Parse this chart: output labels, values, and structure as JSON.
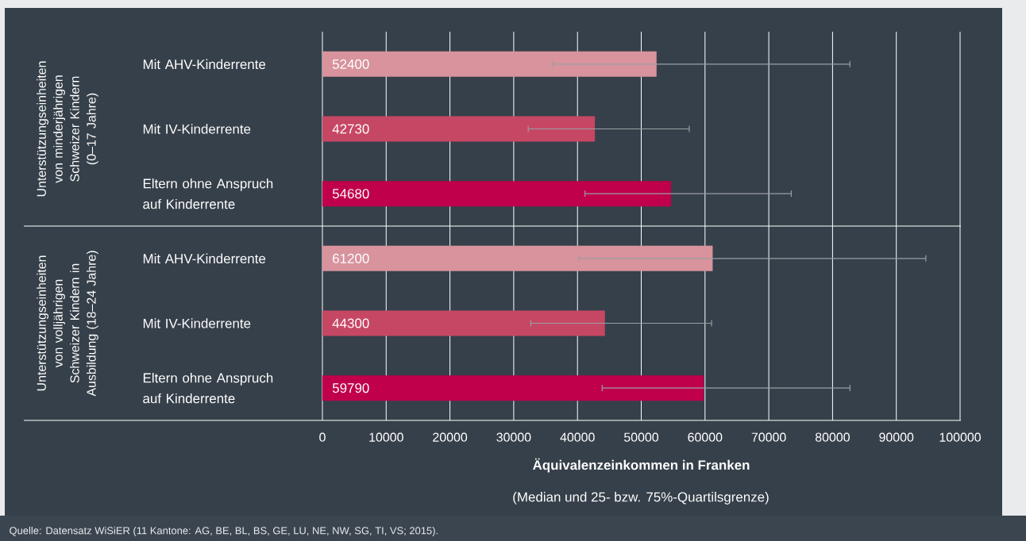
{
  "chart_data": {
    "type": "bar",
    "orientation": "horizontal",
    "categories": [
      "Mit AHV-Kinderrente",
      "Mit IV-Kinderrente",
      "Eltern ohne Anspruch auf Kinderrente",
      "Mit AHV-Kinderrente",
      "Mit IV-Kinderrente",
      "Eltern ohne Anspruch auf Kinderrente"
    ],
    "values": [
      52400,
      42730,
      54680,
      61200,
      44300,
      59790
    ],
    "colors": [
      "#d8939d",
      "#c64764",
      "#c0004a",
      "#d8939d",
      "#c64764",
      "#c0004a"
    ],
    "errors": [
      [
        36100,
        82800
      ],
      [
        32200,
        57600
      ],
      [
        41100,
        73600
      ],
      [
        40200,
        94700
      ],
      [
        32600,
        61100
      ],
      [
        43800,
        82800
      ]
    ],
    "data_labels": true,
    "xlim": [
      0,
      100000
    ],
    "xticks": [
      0,
      10000,
      20000,
      30000,
      40000,
      50000,
      60000,
      70000,
      80000,
      90000,
      100000
    ],
    "grid": "x",
    "xlabel": "Äquivalenzeinkommen in Franken",
    "annotations": [
      "(Median und 25- bzw. 75%-Quartilsgrenze)",
      "Unterstützungseinheiten von minderjährigen Schweizer Kindern (0–17 Jahre)",
      "Unterstützungseinheiten von volljährigen Schweizer Kindern in Ausbildung (18–24 Jahre)",
      "Quelle: Datensatz WiSiER (11 Kantone: AG, BE, BL, BS, GE, LU, NE, NW, SG, TI, VS; 2015)."
    ]
  }
}
